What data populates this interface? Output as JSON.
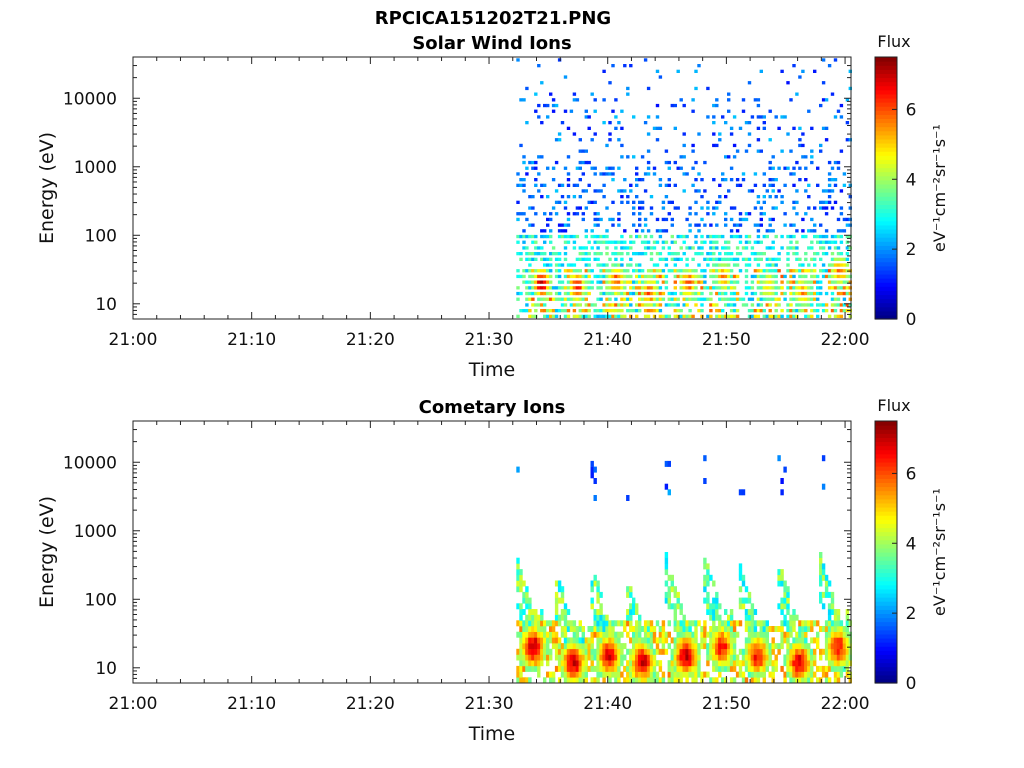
{
  "figure": {
    "title": "RPCICA151202T21.PNG"
  },
  "chart_data": [
    {
      "type": "heatmap",
      "title": "Solar Wind Ions",
      "xlabel": "Time",
      "ylabel": "Energy (eV)",
      "x_ticks": [
        "21:00",
        "21:10",
        "21:20",
        "21:30",
        "21:40",
        "21:50",
        "22:00"
      ],
      "x_range_minutes": [
        0,
        60.5
      ],
      "y_scale": "log",
      "y_ticks": [
        "10",
        "100",
        "1000",
        "10000"
      ],
      "y_range": [
        6,
        40000
      ],
      "data_start_minute": 32.3,
      "colorbar": {
        "title": "Flux",
        "label": "eV⁻¹cm⁻²sr⁻¹s⁻¹",
        "ticks": [
          "0",
          "2",
          "4",
          "6"
        ],
        "range": [
          0,
          7.5
        ],
        "colormap": "jet"
      },
      "peak_times_minutes": [
        34.3,
        37.3,
        40.6,
        43.4,
        46.7,
        49.6,
        53.4,
        56.3,
        59.4
      ],
      "peak_energies_eV": [
        20,
        18,
        22,
        15,
        20,
        25,
        18,
        15,
        30
      ],
      "peak_flux": [
        7.0,
        6.5,
        6.0,
        6.0,
        6.2,
        5.5,
        5.0,
        5.5,
        5.8
      ],
      "background_flux_range": [
        1.0,
        3.5
      ]
    },
    {
      "type": "heatmap",
      "title": "Cometary Ions",
      "xlabel": "Time",
      "ylabel": "Energy (eV)",
      "x_ticks": [
        "21:00",
        "21:10",
        "21:20",
        "21:30",
        "21:40",
        "21:50",
        "22:00"
      ],
      "x_range_minutes": [
        0,
        60.5
      ],
      "y_scale": "log",
      "y_ticks": [
        "10",
        "100",
        "1000",
        "10000"
      ],
      "y_range": [
        6,
        40000
      ],
      "data_start_minute": 32.3,
      "colorbar": {
        "title": "Flux",
        "label": "eV⁻¹cm⁻²sr⁻¹s⁻¹",
        "ticks": [
          "0",
          "2",
          "4",
          "6"
        ],
        "range": [
          0,
          7.5
        ],
        "colormap": "jet"
      },
      "peak_times_minutes": [
        33.6,
        37.0,
        40.0,
        42.8,
        46.5,
        49.5,
        52.5,
        56.0,
        59.3
      ],
      "peak_energies_eV": [
        20,
        12,
        15,
        12,
        15,
        20,
        15,
        12,
        20
      ],
      "peak_flux": [
        7.2,
        7.0,
        6.8,
        7.0,
        7.0,
        6.5,
        6.5,
        6.8,
        6.5
      ],
      "background_flux_range": [
        2.0,
        4.5
      ]
    }
  ]
}
